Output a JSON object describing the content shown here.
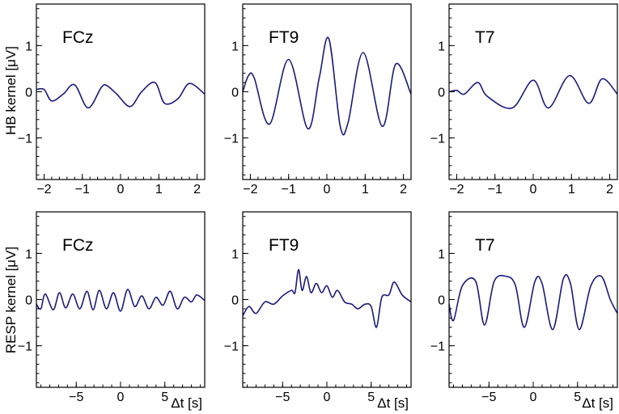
{
  "figure": {
    "row_ylabels": [
      "HB kernel  [μV]",
      "RESP kernel  [μV]"
    ],
    "xlabel": "Δt  [s]",
    "line_color": "#1a1a7a"
  },
  "chart_data": [
    {
      "type": "line",
      "panel_label": "FCz",
      "row": 0,
      "col": 0,
      "xlim": [
        -2.2,
        2.2
      ],
      "ylim": [
        -1.9,
        1.9
      ],
      "xticks": [
        -2,
        -1,
        0,
        1,
        2
      ],
      "yticks": [
        -1,
        0,
        1
      ],
      "series": [
        {
          "values": [
            [
              -2.2,
              0.05
            ],
            [
              -2.0,
              0.05
            ],
            [
              -1.8,
              -0.2
            ],
            [
              -1.5,
              -0.05
            ],
            [
              -1.2,
              0.15
            ],
            [
              -0.85,
              -0.35
            ],
            [
              -0.5,
              0.1
            ],
            [
              -0.35,
              0.13
            ],
            [
              -0.1,
              -0.05
            ],
            [
              0.25,
              -0.32
            ],
            [
              0.55,
              0.0
            ],
            [
              0.9,
              0.2
            ],
            [
              1.15,
              -0.25
            ],
            [
              1.5,
              -0.15
            ],
            [
              1.8,
              0.18
            ],
            [
              2.2,
              -0.05
            ]
          ]
        }
      ]
    },
    {
      "type": "line",
      "panel_label": "FT9",
      "row": 0,
      "col": 1,
      "xlim": [
        -2.2,
        2.2
      ],
      "ylim": [
        -1.9,
        1.9
      ],
      "xticks": [
        -2,
        -1,
        0,
        1,
        2
      ],
      "yticks": [
        -1,
        0,
        1
      ],
      "series": [
        {
          "values": [
            [
              -2.2,
              0.0
            ],
            [
              -2.05,
              0.35
            ],
            [
              -1.9,
              0.3
            ],
            [
              -1.5,
              -0.7
            ],
            [
              -1.0,
              0.7
            ],
            [
              -0.5,
              -0.8
            ],
            [
              -0.2,
              0.3
            ],
            [
              0.05,
              1.15
            ],
            [
              0.35,
              -0.75
            ],
            [
              0.55,
              -0.68
            ],
            [
              0.95,
              0.85
            ],
            [
              1.45,
              -0.75
            ],
            [
              1.8,
              0.6
            ],
            [
              2.2,
              -0.05
            ]
          ]
        }
      ]
    },
    {
      "type": "line",
      "panel_label": "T7",
      "row": 0,
      "col": 2,
      "xlim": [
        -2.2,
        2.2
      ],
      "ylim": [
        -1.9,
        1.9
      ],
      "xticks": [
        -2,
        -1,
        0,
        1,
        2
      ],
      "yticks": [
        -1,
        0,
        1
      ],
      "series": [
        {
          "values": [
            [
              -2.2,
              0.0
            ],
            [
              -2.0,
              0.03
            ],
            [
              -1.8,
              -0.05
            ],
            [
              -1.45,
              0.2
            ],
            [
              -1.2,
              -0.1
            ],
            [
              -0.55,
              -0.35
            ],
            [
              0.0,
              0.25
            ],
            [
              0.4,
              -0.35
            ],
            [
              0.95,
              0.35
            ],
            [
              1.45,
              -0.25
            ],
            [
              1.8,
              0.28
            ],
            [
              2.2,
              -0.05
            ]
          ]
        }
      ]
    },
    {
      "type": "line",
      "panel_label": "FCz",
      "row": 1,
      "col": 0,
      "xlim": [
        -9.5,
        9.5
      ],
      "ylim": [
        -1.9,
        1.9
      ],
      "xticks": [
        -5,
        0,
        5
      ],
      "yticks": [
        -1,
        0,
        1
      ],
      "series": [
        {
          "values": [
            [
              -9.5,
              -0.1
            ],
            [
              -9.0,
              -0.2
            ],
            [
              -8.5,
              0.12
            ],
            [
              -7.6,
              -0.22
            ],
            [
              -6.9,
              0.15
            ],
            [
              -6.2,
              -0.18
            ],
            [
              -5.4,
              0.12
            ],
            [
              -4.6,
              -0.2
            ],
            [
              -3.8,
              0.18
            ],
            [
              -3.1,
              -0.22
            ],
            [
              -2.4,
              0.2
            ],
            [
              -1.6,
              -0.2
            ],
            [
              -0.8,
              0.15
            ],
            [
              0.0,
              -0.25
            ],
            [
              0.8,
              0.22
            ],
            [
              1.6,
              -0.15
            ],
            [
              2.4,
              0.08
            ],
            [
              3.2,
              -0.2
            ],
            [
              4.0,
              0.05
            ],
            [
              4.8,
              -0.12
            ],
            [
              5.6,
              0.18
            ],
            [
              6.4,
              -0.2
            ],
            [
              7.2,
              0.05
            ],
            [
              8.0,
              -0.05
            ],
            [
              8.6,
              0.1
            ],
            [
              9.5,
              -0.02
            ]
          ]
        }
      ]
    },
    {
      "type": "line",
      "panel_label": "FT9",
      "row": 1,
      "col": 1,
      "xlim": [
        -9.5,
        9.5
      ],
      "ylim": [
        -1.9,
        1.9
      ],
      "xticks": [
        -5,
        0,
        5
      ],
      "yticks": [
        -1,
        0,
        1
      ],
      "series": [
        {
          "values": [
            [
              -9.5,
              -0.35
            ],
            [
              -8.8,
              -0.15
            ],
            [
              -8.0,
              -0.3
            ],
            [
              -7.0,
              -0.05
            ],
            [
              -6.0,
              -0.1
            ],
            [
              -5.0,
              0.08
            ],
            [
              -4.0,
              0.2
            ],
            [
              -3.6,
              0.15
            ],
            [
              -3.2,
              0.65
            ],
            [
              -2.8,
              0.2
            ],
            [
              -2.3,
              0.5
            ],
            [
              -1.8,
              0.15
            ],
            [
              -1.2,
              0.35
            ],
            [
              -0.6,
              0.15
            ],
            [
              0.0,
              0.3
            ],
            [
              0.6,
              0.05
            ],
            [
              1.2,
              0.2
            ],
            [
              2.0,
              -0.05
            ],
            [
              2.8,
              -0.1
            ],
            [
              3.5,
              -0.2
            ],
            [
              4.3,
              -0.1
            ],
            [
              5.0,
              -0.15
            ],
            [
              5.6,
              -0.6
            ],
            [
              6.2,
              0.05
            ],
            [
              7.0,
              0.1
            ],
            [
              7.6,
              0.38
            ],
            [
              8.5,
              0.1
            ],
            [
              9.5,
              -0.05
            ]
          ]
        }
      ]
    },
    {
      "type": "line",
      "panel_label": "T7",
      "row": 1,
      "col": 2,
      "xlim": [
        -9.5,
        9.5
      ],
      "ylim": [
        -1.9,
        1.9
      ],
      "xticks": [
        -5,
        0,
        5
      ],
      "yticks": [
        -1,
        0,
        1
      ],
      "series": [
        {
          "values": [
            [
              -9.5,
              -0.1
            ],
            [
              -9.0,
              -0.45
            ],
            [
              -8.0,
              0.3
            ],
            [
              -6.5,
              0.4
            ],
            [
              -5.5,
              -0.55
            ],
            [
              -4.4,
              0.4
            ],
            [
              -3.0,
              0.5
            ],
            [
              -2.0,
              0.3
            ],
            [
              -1.0,
              -0.6
            ],
            [
              0.2,
              0.4
            ],
            [
              1.0,
              0.35
            ],
            [
              2.2,
              -0.65
            ],
            [
              3.4,
              0.45
            ],
            [
              4.2,
              0.35
            ],
            [
              5.2,
              -0.65
            ],
            [
              6.5,
              0.3
            ],
            [
              7.7,
              0.5
            ],
            [
              8.7,
              0.0
            ],
            [
              9.5,
              -0.3
            ]
          ]
        }
      ]
    }
  ]
}
